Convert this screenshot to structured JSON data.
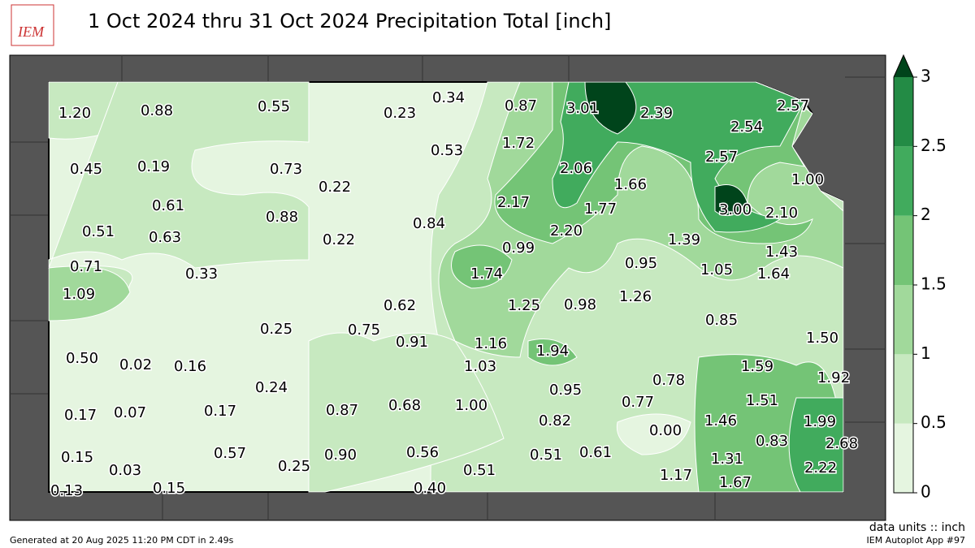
{
  "title": "1 Oct 2024 thru 31 Oct 2024 Precipitation Total [inch]",
  "logo": "IEM",
  "units_note": "data units :: inch",
  "generated": "Generated at 20 Aug 2025 11:20 PM CDT in 2.49s",
  "app": "IEM Autoplot App #97",
  "colorbar": {
    "ticks": [
      0,
      0.5,
      1,
      1.5,
      2,
      2.5,
      3
    ],
    "colors": [
      "#e5f5e0",
      "#c7e9c0",
      "#a1d99b",
      "#74c476",
      "#41ab5d",
      "#238b45",
      "#006d2c"
    ],
    "over_color": "#00441b"
  },
  "stations": [
    "1.20",
    "0.88",
    "0.55",
    "0.23",
    "0.34",
    "0.87",
    "3.01",
    "2.39",
    "2.57",
    "2.54",
    "0.45",
    "0.19",
    "0.73",
    "0.22",
    "0.53",
    "1.72",
    "2.06",
    "1.66",
    "2.57",
    "1.00",
    "0.61",
    "0.51",
    "0.63",
    "0.88",
    "0.22",
    "0.84",
    "2.17",
    "1.77",
    "2.20",
    "3.00",
    "2.10",
    "1.39",
    "0.71",
    "0.33",
    "0.99",
    "1.74",
    "0.95",
    "1.05",
    "1.43",
    "1.64",
    "1.09",
    "0.62",
    "1.25",
    "0.98",
    "1.26",
    "0.85",
    "0.25",
    "0.75",
    "0.91",
    "1.16",
    "1.94",
    "1.50",
    "0.50",
    "0.02",
    "0.16",
    "1.03",
    "1.59",
    "1.92",
    "0.24",
    "0.95",
    "0.78",
    "0.87",
    "0.68",
    "1.00",
    "0.77",
    "1.51",
    "0.17",
    "0.07",
    "0.17",
    "0.82",
    "1.46",
    "1.99",
    "0.00",
    "0.83",
    "2.68",
    "0.15",
    "0.57",
    "0.56",
    "0.51",
    "0.61",
    "0.90",
    "0.03",
    "0.25",
    "0.51",
    "1.31",
    "2.22",
    "1.17",
    "1.67",
    "0.13",
    "0.15",
    "0.40"
  ]
}
